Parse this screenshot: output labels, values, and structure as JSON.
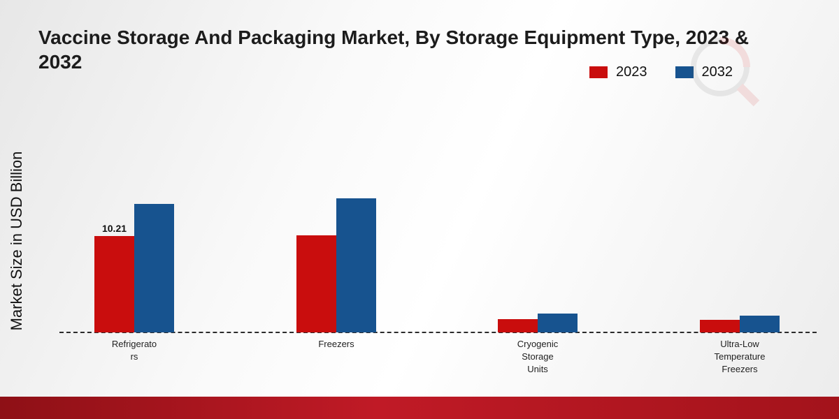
{
  "title": "Vaccine Storage And Packaging Market, By Storage Equipment Type, 2023 & 2032",
  "y_axis_label": "Market Size in USD Billion",
  "legend": [
    {
      "label": "2023",
      "color": "#c90d0d"
    },
    {
      "label": "2032",
      "color": "#17538f"
    }
  ],
  "colors": {
    "series_2023": "#c90d0d",
    "series_2032": "#17538f",
    "footer_band": "#b01420",
    "baseline": "#2b2b2b"
  },
  "chart_data": {
    "type": "bar",
    "title": "Vaccine Storage And Packaging Market, By Storage Equipment Type, 2023 & 2032",
    "xlabel": "",
    "ylabel": "Market Size in USD Billion",
    "categories": [
      "Refrigerators",
      "Freezers",
      "Cryogenic Storage Units",
      "Ultra-Low Temperature Freezers"
    ],
    "category_label_lines": [
      [
        "Refrigerato",
        "rs"
      ],
      [
        "Freezers"
      ],
      [
        "Cryogenic",
        "Storage",
        "Units"
      ],
      [
        "Ultra-Low",
        "Temperature",
        "Freezers"
      ]
    ],
    "series": [
      {
        "name": "2023",
        "color": "#c90d0d",
        "values": [
          10.21,
          10.3,
          1.4,
          1.3
        ]
      },
      {
        "name": "2032",
        "color": "#17538f",
        "values": [
          13.6,
          14.2,
          2.0,
          1.8
        ]
      }
    ],
    "annotations": [
      {
        "series": "2023",
        "category_index": 0,
        "text": "10.21"
      }
    ],
    "ylim": [
      0,
      16
    ],
    "grid": false,
    "legend_position": "top-right",
    "baseline_style": "dashed"
  }
}
